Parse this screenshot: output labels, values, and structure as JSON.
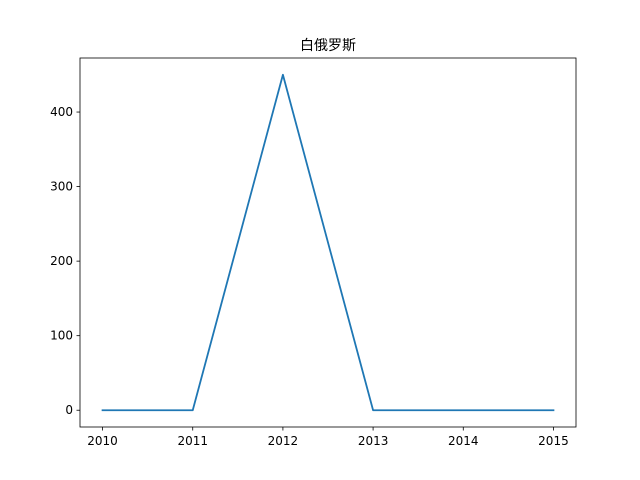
{
  "chart_data": {
    "type": "line",
    "title": "白俄罗斯",
    "xlabel": "",
    "ylabel": "",
    "x": [
      2010,
      2011,
      2012,
      2013,
      2014,
      2015
    ],
    "xlim": [
      2009.75,
      2015.25
    ],
    "ylim": [
      -22.5,
      472.5
    ],
    "x_ticks": [
      "2010",
      "2011",
      "2012",
      "2013",
      "2014",
      "2015"
    ],
    "y_ticks": [
      0,
      100,
      200,
      300,
      400
    ],
    "grid": false,
    "series": [
      {
        "values": [
          0,
          0,
          450,
          0,
          0,
          0
        ],
        "color": "#1f77b4"
      }
    ]
  }
}
